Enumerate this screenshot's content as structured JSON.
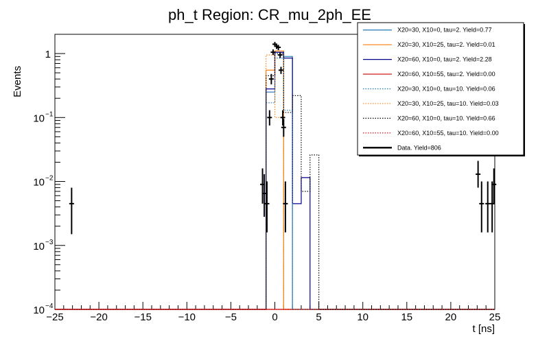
{
  "chart_data": {
    "type": "histogram",
    "title": "ph_t Region: CR_mu_2ph_EE",
    "xlabel": "t [ns]",
    "ylabel": "Events",
    "xlim": [
      -25,
      25
    ],
    "ylim": [
      0.0001,
      2
    ],
    "yscale": "log",
    "x_ticks": [
      {
        "value": -25,
        "label": "−25"
      },
      {
        "value": -20,
        "label": "−20"
      },
      {
        "value": -15,
        "label": "−15"
      },
      {
        "value": -10,
        "label": "−10"
      },
      {
        "value": -5,
        "label": "−5"
      },
      {
        "value": 0,
        "label": "0"
      },
      {
        "value": 5,
        "label": "5"
      },
      {
        "value": 10,
        "label": "10"
      },
      {
        "value": 15,
        "label": "15"
      },
      {
        "value": 20,
        "label": "20"
      },
      {
        "value": 25,
        "label": "25"
      }
    ],
    "y_ticks": [
      {
        "value": 1,
        "base": "1",
        "exp": ""
      },
      {
        "value": 0.1,
        "base": "10",
        "exp": "−1"
      },
      {
        "value": 0.01,
        "base": "10",
        "exp": "−2"
      },
      {
        "value": 0.001,
        "base": "10",
        "exp": "−3"
      },
      {
        "value": 0.0001,
        "base": "10",
        "exp": "−4"
      }
    ],
    "bin_width": 1,
    "legend_position": "top-right",
    "series": [
      {
        "name": "X20=30, X10=0, tau=2. Yield=0.77",
        "color": "#1f77b4",
        "style": "solid",
        "bins": [
          [
            -1,
            0.25
          ],
          [
            0,
            1.05
          ],
          [
            1,
            0.9
          ]
        ]
      },
      {
        "name": "X20=30, X10=25, tau=2. Yield=0.01",
        "color": "#ff7f0e",
        "style": "solid",
        "bins": [
          [
            -1,
            0.55
          ],
          [
            0,
            1.1
          ]
        ]
      },
      {
        "name": "X20=60, X10=0, tau=2. Yield=2.28",
        "color": "#00008b",
        "style": "solid",
        "bins": [
          [
            -1,
            0.28
          ],
          [
            0,
            1.05
          ],
          [
            1,
            0.85
          ],
          [
            2,
            0.0045
          ],
          [
            3,
            0.0115
          ]
        ]
      },
      {
        "name": "X20=60, X10=55, tau=2. Yield=0.00",
        "color": "#cc0000",
        "style": "solid",
        "bins": []
      },
      {
        "name": "X20=30, X10=0, tau=10. Yield=0.06",
        "color": "#1f77b4",
        "style": "dotted",
        "bins": [
          [
            -1,
            0.17
          ],
          [
            0,
            0.85
          ],
          [
            1,
            0.13
          ]
        ]
      },
      {
        "name": "X20=30, X10=25, tau=10. Yield=0.03",
        "color": "#ff7f0e",
        "style": "dotted",
        "bins": [
          [
            -1,
            0.95
          ],
          [
            0,
            0.1
          ]
        ]
      },
      {
        "name": "X20=60, X10=0, tau=10. Yield=0.66",
        "color": "#000000",
        "style": "dotted",
        "bins": [
          [
            -1,
            0.45
          ],
          [
            0,
            1.0
          ],
          [
            1,
            0.12
          ],
          [
            2,
            0.22
          ],
          [
            3,
            0.007
          ],
          [
            4,
            0.026
          ]
        ]
      },
      {
        "name": "X20=60, X10=55, tau=10. Yield=0.00",
        "color": "#cc0000",
        "style": "dotted",
        "bins": []
      }
    ],
    "data_series": {
      "name": "Data. Yield=806",
      "color": "#000000",
      "points": [
        [
          -23.1,
          0.0045,
          0.0015,
          0.008
        ],
        [
          -1.4,
          0.009,
          0.0045,
          0.016
        ],
        [
          -1.2,
          0.0065,
          0.0028,
          0.013
        ],
        [
          -0.9,
          0.0045,
          0.0016,
          0.01
        ],
        [
          -0.6,
          0.1,
          0.075,
          0.13
        ],
        [
          -0.4,
          0.4,
          0.33,
          0.48
        ],
        [
          -0.2,
          1.05,
          0.95,
          1.16
        ],
        [
          0.0,
          1.4,
          1.28,
          1.52
        ],
        [
          0.2,
          1.3,
          1.18,
          1.42
        ],
        [
          0.4,
          1.25,
          1.13,
          1.37
        ],
        [
          0.6,
          0.95,
          0.85,
          1.05
        ],
        [
          0.7,
          0.55,
          0.48,
          0.62
        ],
        [
          0.9,
          0.1,
          0.075,
          0.13
        ],
        [
          1.0,
          0.07,
          0.05,
          0.095
        ],
        [
          1.2,
          0.0045,
          0.0016,
          0.01
        ],
        [
          23.1,
          0.013,
          0.008,
          0.021
        ],
        [
          23.5,
          0.0045,
          0.0016,
          0.01
        ],
        [
          24.2,
          0.0045,
          0.0016,
          0.01
        ],
        [
          24.7,
          0.0045,
          0.0016,
          0.01
        ],
        [
          24.9,
          0.009,
          0.0045,
          0.016
        ]
      ]
    }
  }
}
